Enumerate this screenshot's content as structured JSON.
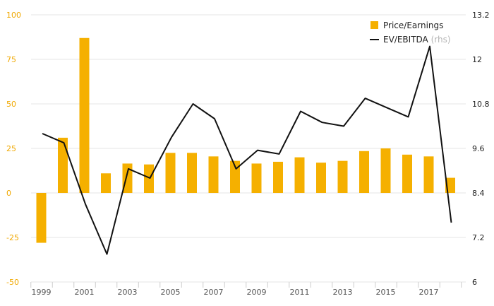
{
  "chart_data": {
    "type": "bar",
    "x_labels": [
      "1999",
      "2001",
      "2003",
      "2005",
      "2007",
      "2009",
      "2011",
      "2013",
      "2015",
      "2017"
    ],
    "years": [
      1999,
      2000,
      2001,
      2002,
      2003,
      2004,
      2005,
      2006,
      2007,
      2008,
      2009,
      2010,
      2011,
      2012,
      2013,
      2014,
      2015,
      2016,
      2017,
      2018
    ],
    "y_left": {
      "ticks": [
        100,
        75,
        50,
        25,
        0,
        -25,
        -50
      ],
      "range": [
        -50,
        100
      ]
    },
    "y_right": {
      "ticks": [
        "13.2",
        "12",
        "10.8",
        "9.6",
        "8.4",
        "7.2",
        "6"
      ],
      "range": [
        6,
        13.2
      ]
    },
    "series": [
      {
        "name": "Price/Earnings",
        "type": "bar",
        "axis": "left",
        "color": "#f5b000",
        "values": [
          -28,
          31,
          87,
          11,
          16.5,
          16,
          22.5,
          22.5,
          20.5,
          18,
          16.5,
          17.5,
          20,
          17,
          18,
          23.5,
          25,
          21.5,
          20.5,
          8.5
        ]
      },
      {
        "name": "EV/EBITDA",
        "name_suffix": "(rhs)",
        "type": "line",
        "axis": "right",
        "color": "#111111",
        "values": [
          10.0,
          9.75,
          null,
          6.75,
          9.05,
          8.8,
          9.9,
          10.8,
          10.4,
          9.05,
          9.55,
          9.45,
          10.6,
          10.3,
          10.2,
          10.95,
          10.7,
          10.45,
          12.35,
          7.6
        ],
        "notes_2001": 8.1
      }
    ],
    "grid": true,
    "legend": "top-right"
  }
}
